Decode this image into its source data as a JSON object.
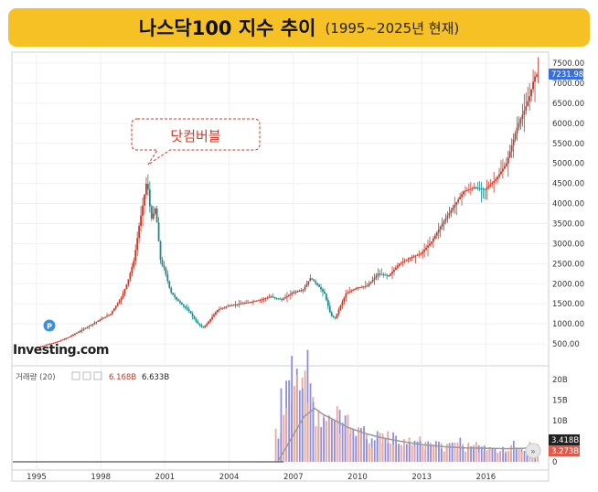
{
  "title": {
    "main": "나스닥100 지수 추이",
    "sub": "(1995~2025년 현재)"
  },
  "colors": {
    "up": "#c23a2a",
    "down": "#1f8b8b",
    "vol_up": "#e8a89e",
    "vol_down": "#8e8ee0",
    "ma": "#9a9a9a",
    "price_tag": "#3a6fd8",
    "vol_tag_dark": "#222222",
    "vol_tag_red": "#e05a4a",
    "callout": "#d23a2a",
    "banner": "#f6c125"
  },
  "chart_data": [
    {
      "type": "line",
      "title": "나스닥100 지수 추이",
      "subtitle": "(1995~2025년 현재)",
      "x_ticks": [
        "1995",
        "1998",
        "2001",
        "2004",
        "2007",
        "2010",
        "2013",
        "2016"
      ],
      "y_ticks": [
        "500.00",
        "1000.00",
        "1500.00",
        "2000.00",
        "2500.00",
        "3000.00",
        "3500.00",
        "4000.00",
        "4500.00",
        "5000.00",
        "5500.00",
        "6000.00",
        "6500.00",
        "7000.00",
        "7500.00"
      ],
      "ylim": [
        0,
        7650
      ],
      "last_price_label": "7231.98",
      "last_price": 7231.98,
      "annotation": "닷컴버블",
      "badge": "P",
      "watermark": "Investing.com",
      "x": [
        1995.0,
        1995.5,
        1996.0,
        1996.5,
        1997.0,
        1997.5,
        1998.0,
        1998.5,
        1999.0,
        1999.3,
        1999.6,
        1999.85,
        2000.0,
        2000.2,
        2000.4,
        2000.6,
        2000.85,
        2001.0,
        2001.3,
        2001.6,
        2001.9,
        2002.2,
        2002.5,
        2002.8,
        2003.0,
        2003.5,
        2004.0,
        2004.5,
        2005.0,
        2005.5,
        2006.0,
        2006.5,
        2007.0,
        2007.5,
        2007.85,
        2008.2,
        2008.5,
        2008.8,
        2009.0,
        2009.2,
        2009.5,
        2010.0,
        2010.5,
        2011.0,
        2011.5,
        2012.0,
        2012.5,
        2013.0,
        2013.5,
        2014.0,
        2014.5,
        2015.0,
        2015.5,
        2016.0,
        2016.5,
        2017.0,
        2017.5,
        2017.9,
        2018.1,
        2018.3,
        2018.45
      ],
      "values": [
        400,
        480,
        550,
        660,
        800,
        950,
        1100,
        1250,
        1650,
        2050,
        2600,
        3500,
        3950,
        4600,
        3600,
        3900,
        2500,
        2400,
        1800,
        1600,
        1450,
        1300,
        1050,
        900,
        1000,
        1350,
        1450,
        1500,
        1540,
        1600,
        1680,
        1600,
        1780,
        1850,
        2150,
        1950,
        1750,
        1200,
        1150,
        1400,
        1750,
        1900,
        1950,
        2250,
        2200,
        2500,
        2650,
        2750,
        3050,
        3500,
        3900,
        4300,
        4400,
        4350,
        4600,
        5000,
        5900,
        6400,
        6700,
        7150,
        7231.98
      ]
    },
    {
      "type": "bar",
      "title": "거래량 (20)",
      "legend_values": [
        "6.168B",
        "6.633B"
      ],
      "y_ticks": [
        "0",
        "5B",
        "10B",
        "15B",
        "20B"
      ],
      "ylim": [
        0,
        22
      ],
      "last_labels": [
        "3.418B",
        "3.273B"
      ],
      "series": [
        {
          "name": "거래량",
          "x": [
            2006.3,
            2006.55,
            2006.8,
            2007.05,
            2007.3,
            2007.55,
            2007.8,
            2008.05,
            2008.3,
            2008.55,
            2008.8,
            2009.05,
            2009.3,
            2009.55,
            2009.8,
            2010.05,
            2010.3,
            2010.55,
            2010.8,
            2011.05,
            2011.3,
            2011.55,
            2011.8,
            2012.05,
            2012.3,
            2012.55,
            2012.8,
            2013.05,
            2013.3,
            2013.55,
            2013.8,
            2014.05,
            2014.3,
            2014.55,
            2014.8,
            2015.05,
            2015.3,
            2015.55,
            2015.8,
            2016.05,
            2016.3,
            2016.55,
            2016.8,
            2017.05,
            2017.3,
            2017.55,
            2017.8,
            2018.05,
            2018.3
          ],
          "values": [
            8,
            16,
            18,
            20,
            17,
            21,
            15,
            12,
            10,
            14,
            9,
            11,
            8,
            9,
            7,
            8,
            7,
            6,
            5,
            6,
            7,
            6,
            5,
            5,
            5,
            4,
            5,
            4,
            4,
            5,
            4,
            3,
            4,
            4,
            5,
            3,
            4,
            4,
            3,
            4,
            3,
            3,
            3,
            3,
            4,
            4,
            3,
            4,
            3.4
          ]
        },
        {
          "name": "MA",
          "x": [
            2006.3,
            2007.0,
            2007.5,
            2008.0,
            2008.4,
            2008.8,
            2009.5,
            2010.3,
            2011.0,
            2012.0,
            2013.0,
            2014.0,
            2015.0,
            2016.0,
            2017.0,
            2017.8,
            2018.2,
            2018.45
          ],
          "values": [
            0.3,
            6.5,
            11,
            13,
            11.5,
            10.5,
            8.5,
            7.0,
            6.0,
            5.0,
            4.2,
            3.7,
            3.4,
            3.3,
            3.2,
            3.3,
            3.7,
            3.5
          ]
        }
      ]
    }
  ]
}
